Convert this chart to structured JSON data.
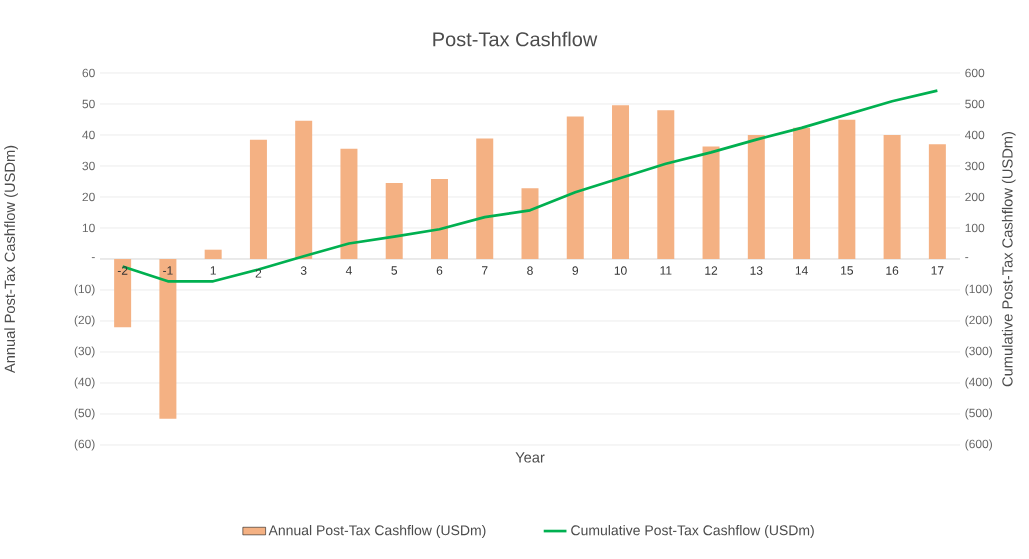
{
  "chart_data": {
    "type": "bar",
    "title": "Post-Tax Cashflow",
    "xlabel": "Year",
    "ylabel": "Annual Post-Tax Cashflow (USDm)",
    "y2label": "Cumulative Post-Tax Cashflow (USDm)",
    "categories": [
      "-2",
      "-1",
      "1",
      "2",
      "3",
      "4",
      "5",
      "6",
      "7",
      "8",
      "9",
      "10",
      "11",
      "12",
      "13",
      "14",
      "15",
      "16",
      "17"
    ],
    "series": [
      {
        "name": "Annual Post-Tax Cashflow (USDm)",
        "color": "#f4b183",
        "values": [
          -22,
          -51.5,
          3,
          38.5,
          44.6,
          35.6,
          24.5,
          25.8,
          38.9,
          22.8,
          46,
          49.6,
          48,
          36.3,
          40,
          42.3,
          44.9,
          40,
          37
        ]
      },
      {
        "name": "Cumulative Post-Tax Cashflow (USDm)",
        "type": "line",
        "axis": "y2",
        "color": "#00b050",
        "values": [
          -24,
          -72,
          -72,
          -34,
          9,
          50,
          72,
          96,
          135,
          157,
          215,
          261,
          307,
          344,
          385,
          423,
          466,
          509,
          543
        ]
      }
    ],
    "ylim": [
      -60,
      60
    ],
    "yticks": [
      {
        "value": -60,
        "label": "(60)"
      },
      {
        "value": -50,
        "label": "(50)"
      },
      {
        "value": -40,
        "label": "(40)"
      },
      {
        "value": -30,
        "label": "(30)"
      },
      {
        "value": -20,
        "label": "(20)"
      },
      {
        "value": -10,
        "label": "(10)"
      },
      {
        "value": 0,
        "label": "-"
      },
      10,
      20,
      30,
      40,
      50,
      60
    ],
    "y2lim": [
      -600,
      600
    ],
    "y2ticks": [
      {
        "value": -600,
        "label": "(600)"
      },
      {
        "value": -500,
        "label": "(500)"
      },
      {
        "value": -400,
        "label": "(400)"
      },
      {
        "value": -300,
        "label": "(300)"
      },
      {
        "value": -200,
        "label": "(200)"
      },
      {
        "value": -100,
        "label": "(100)"
      },
      {
        "value": 0,
        "label": "-"
      },
      100,
      200,
      300,
      400,
      500,
      600
    ],
    "grid": "y",
    "legend": "bottom",
    "marker": "none",
    "line_style": "solid"
  }
}
